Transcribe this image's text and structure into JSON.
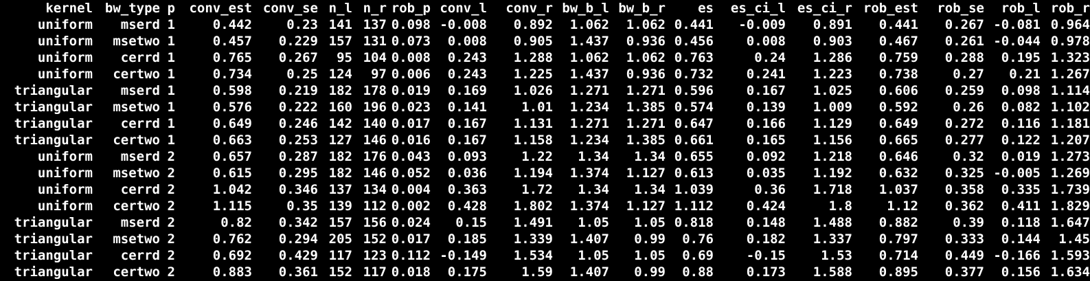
{
  "colors": {
    "background": "#000000",
    "text": "#ffffff"
  },
  "table": {
    "columns": [
      "kernel",
      "bw_type",
      "p",
      "conv_est",
      "conv_se",
      "n_l",
      "n_r",
      "rob_p",
      "conv_l",
      "conv_r",
      "bw_b_l",
      "bw_b_r",
      "es",
      "es_ci_l",
      "es_ci_r",
      "rob_est",
      "rob_se",
      "rob_l",
      "rob_r"
    ],
    "rows": [
      [
        "uniform",
        "mserd",
        "1",
        "0.442",
        "0.23",
        "141",
        "137",
        "0.098",
        "-0.008",
        "0.892",
        "1.062",
        "1.062",
        "0.441",
        "-0.009",
        "0.891",
        "0.441",
        "0.267",
        "-0.081",
        "0.964"
      ],
      [
        "uniform",
        "msetwo",
        "1",
        "0.457",
        "0.229",
        "157",
        "131",
        "0.073",
        "0.008",
        "0.905",
        "1.437",
        "0.936",
        "0.456",
        "0.008",
        "0.903",
        "0.467",
        "0.261",
        "-0.044",
        "0.978"
      ],
      [
        "uniform",
        "cerrd",
        "1",
        "0.765",
        "0.267",
        "95",
        "104",
        "0.008",
        "0.243",
        "1.288",
        "1.062",
        "1.062",
        "0.763",
        "0.24",
        "1.286",
        "0.759",
        "0.288",
        "0.195",
        "1.323"
      ],
      [
        "uniform",
        "certwo",
        "1",
        "0.734",
        "0.25",
        "124",
        "97",
        "0.006",
        "0.243",
        "1.225",
        "1.437",
        "0.936",
        "0.732",
        "0.241",
        "1.223",
        "0.738",
        "0.27",
        "0.21",
        "1.267"
      ],
      [
        "triangular",
        "mserd",
        "1",
        "0.598",
        "0.219",
        "182",
        "178",
        "0.019",
        "0.169",
        "1.026",
        "1.271",
        "1.271",
        "0.596",
        "0.167",
        "1.025",
        "0.606",
        "0.259",
        "0.098",
        "1.114"
      ],
      [
        "triangular",
        "msetwo",
        "1",
        "0.576",
        "0.222",
        "160",
        "196",
        "0.023",
        "0.141",
        "1.01",
        "1.234",
        "1.385",
        "0.574",
        "0.139",
        "1.009",
        "0.592",
        "0.26",
        "0.082",
        "1.102"
      ],
      [
        "triangular",
        "cerrd",
        "1",
        "0.649",
        "0.246",
        "142",
        "140",
        "0.017",
        "0.167",
        "1.131",
        "1.271",
        "1.271",
        "0.647",
        "0.166",
        "1.129",
        "0.649",
        "0.272",
        "0.116",
        "1.181"
      ],
      [
        "triangular",
        "certwo",
        "1",
        "0.663",
        "0.253",
        "127",
        "146",
        "0.016",
        "0.167",
        "1.158",
        "1.234",
        "1.385",
        "0.661",
        "0.165",
        "1.156",
        "0.665",
        "0.277",
        "0.122",
        "1.207"
      ],
      [
        "uniform",
        "mserd",
        "2",
        "0.657",
        "0.287",
        "182",
        "176",
        "0.043",
        "0.093",
        "1.22",
        "1.34",
        "1.34",
        "0.655",
        "0.092",
        "1.218",
        "0.646",
        "0.32",
        "0.019",
        "1.273"
      ],
      [
        "uniform",
        "msetwo",
        "2",
        "0.615",
        "0.295",
        "182",
        "146",
        "0.052",
        "0.036",
        "1.194",
        "1.374",
        "1.127",
        "0.613",
        "0.035",
        "1.192",
        "0.632",
        "0.325",
        "-0.005",
        "1.269"
      ],
      [
        "uniform",
        "cerrd",
        "2",
        "1.042",
        "0.346",
        "137",
        "134",
        "0.004",
        "0.363",
        "1.72",
        "1.34",
        "1.34",
        "1.039",
        "0.36",
        "1.718",
        "1.037",
        "0.358",
        "0.335",
        "1.739"
      ],
      [
        "uniform",
        "certwo",
        "2",
        "1.115",
        "0.35",
        "139",
        "112",
        "0.002",
        "0.428",
        "1.802",
        "1.374",
        "1.127",
        "1.112",
        "0.424",
        "1.8",
        "1.12",
        "0.362",
        "0.411",
        "1.829"
      ],
      [
        "triangular",
        "mserd",
        "2",
        "0.82",
        "0.342",
        "157",
        "156",
        "0.024",
        "0.15",
        "1.491",
        "1.05",
        "1.05",
        "0.818",
        "0.148",
        "1.488",
        "0.882",
        "0.39",
        "0.118",
        "1.647"
      ],
      [
        "triangular",
        "msetwo",
        "2",
        "0.762",
        "0.294",
        "205",
        "152",
        "0.017",
        "0.185",
        "1.339",
        "1.407",
        "0.99",
        "0.76",
        "0.182",
        "1.337",
        "0.797",
        "0.333",
        "0.144",
        "1.45"
      ],
      [
        "triangular",
        "cerrd",
        "2",
        "0.692",
        "0.429",
        "117",
        "123",
        "0.112",
        "-0.149",
        "1.534",
        "1.05",
        "1.05",
        "0.69",
        "-0.15",
        "1.53",
        "0.714",
        "0.449",
        "-0.166",
        "1.593"
      ],
      [
        "triangular",
        "certwo",
        "2",
        "0.883",
        "0.361",
        "152",
        "117",
        "0.018",
        "0.175",
        "1.59",
        "1.407",
        "0.99",
        "0.88",
        "0.173",
        "1.588",
        "0.895",
        "0.377",
        "0.156",
        "1.634"
      ]
    ]
  }
}
